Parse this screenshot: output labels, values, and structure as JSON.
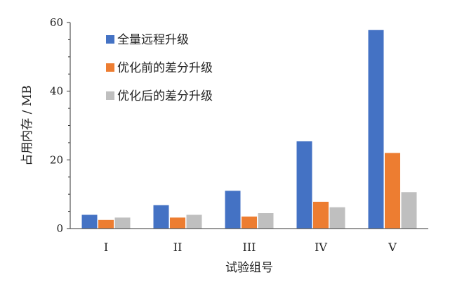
{
  "chart_data": {
    "type": "bar",
    "title": "",
    "xlabel": "试验组号",
    "ylabel": "占用内存 / MB",
    "categories": [
      "I",
      "II",
      "III",
      "IV",
      "V"
    ],
    "ylim": [
      0,
      60
    ],
    "yticks": [
      0,
      20,
      40,
      60
    ],
    "grid": false,
    "legend_position": "top-left",
    "series": [
      {
        "name": "全量远程升级",
        "color": "#4472C4",
        "values": [
          4.0,
          6.8,
          11.0,
          25.4,
          57.8
        ]
      },
      {
        "name": "优化前的差分升级",
        "color": "#ED7D31",
        "values": [
          2.5,
          3.2,
          3.5,
          7.8,
          22.0
        ]
      },
      {
        "name": "优化后的差分升级",
        "color": "#BFBFBF",
        "values": [
          3.2,
          4.0,
          4.5,
          6.2,
          10.6
        ]
      }
    ]
  }
}
